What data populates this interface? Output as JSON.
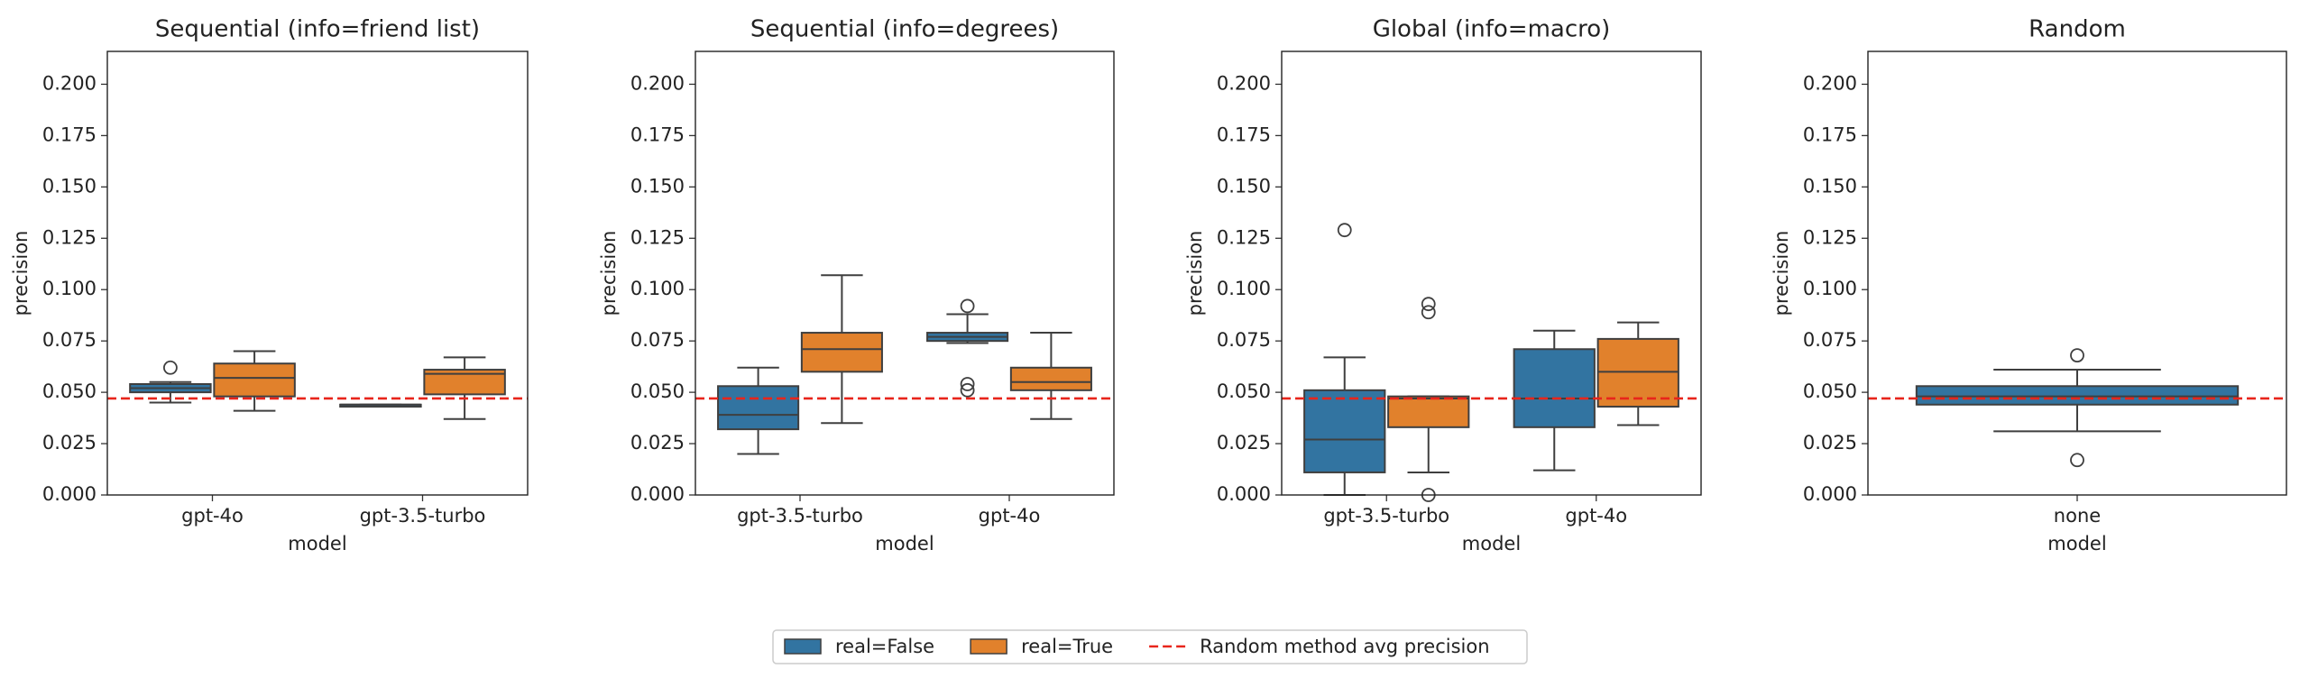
{
  "chart_data": [
    {
      "type": "box",
      "title": "Sequential (info=friend list)",
      "xlabel": "model",
      "ylabel": "precision",
      "categories": [
        "gpt-4o",
        "gpt-3.5-turbo"
      ],
      "ylim": [
        0,
        0.216
      ],
      "yticks": [
        {
          "value": 0,
          "label": "0.000"
        },
        {
          "value": 0.025,
          "label": "0.025"
        },
        {
          "value": 0.05,
          "label": "0.050"
        },
        {
          "value": 0.075,
          "label": "0.075"
        },
        {
          "value": 0.1,
          "label": "0.100"
        },
        {
          "value": 0.125,
          "label": "0.125"
        },
        {
          "value": 0.15,
          "label": "0.150"
        },
        {
          "value": 0.175,
          "label": "0.175"
        },
        {
          "value": 0.2,
          "label": "0.200"
        }
      ],
      "series": [
        {
          "color": "#3274a1",
          "boxes": [
            {
              "whislo": 0.045,
              "q1": 0.05,
              "median": 0.052,
              "q3": 0.054,
              "whishi": 0.055,
              "fliers": [
                0.062
              ]
            },
            {
              "whislo": 0.043,
              "q1": 0.043,
              "median": 0.044,
              "q3": 0.044,
              "whishi": 0.044,
              "fliers": []
            }
          ]
        },
        {
          "color": "#e1812c",
          "boxes": [
            {
              "whislo": 0.041,
              "q1": 0.048,
              "median": 0.057,
              "q3": 0.064,
              "whishi": 0.07,
              "fliers": []
            },
            {
              "whislo": 0.037,
              "q1": 0.049,
              "median": 0.059,
              "q3": 0.061,
              "whishi": 0.067,
              "fliers": []
            }
          ]
        }
      ]
    },
    {
      "type": "box",
      "title": "Sequential (info=degrees)",
      "xlabel": "model",
      "ylabel": "precision",
      "categories": [
        "gpt-3.5-turbo",
        "gpt-4o"
      ],
      "ylim": [
        0,
        0.216
      ],
      "yticks": [
        {
          "value": 0,
          "label": "0.000"
        },
        {
          "value": 0.025,
          "label": "0.025"
        },
        {
          "value": 0.05,
          "label": "0.050"
        },
        {
          "value": 0.075,
          "label": "0.075"
        },
        {
          "value": 0.1,
          "label": "0.100"
        },
        {
          "value": 0.125,
          "label": "0.125"
        },
        {
          "value": 0.15,
          "label": "0.150"
        },
        {
          "value": 0.175,
          "label": "0.175"
        },
        {
          "value": 0.2,
          "label": "0.200"
        }
      ],
      "series": [
        {
          "color": "#3274a1",
          "boxes": [
            {
              "whislo": 0.02,
              "q1": 0.032,
              "median": 0.039,
              "q3": 0.053,
              "whishi": 0.062,
              "fliers": []
            },
            {
              "whislo": 0.074,
              "q1": 0.075,
              "median": 0.077,
              "q3": 0.079,
              "whishi": 0.088,
              "fliers": [
                0.092,
                0.054,
                0.051
              ]
            }
          ]
        },
        {
          "color": "#e1812c",
          "boxes": [
            {
              "whislo": 0.035,
              "q1": 0.06,
              "median": 0.071,
              "q3": 0.079,
              "whishi": 0.107,
              "fliers": []
            },
            {
              "whislo": 0.037,
              "q1": 0.051,
              "median": 0.055,
              "q3": 0.062,
              "whishi": 0.079,
              "fliers": []
            }
          ]
        }
      ]
    },
    {
      "type": "box",
      "title": "Global (info=macro)",
      "xlabel": "model",
      "ylabel": "precision",
      "categories": [
        "gpt-3.5-turbo",
        "gpt-4o"
      ],
      "ylim": [
        0,
        0.216
      ],
      "yticks": [
        {
          "value": 0,
          "label": "0.000"
        },
        {
          "value": 0.025,
          "label": "0.025"
        },
        {
          "value": 0.05,
          "label": "0.050"
        },
        {
          "value": 0.075,
          "label": "0.075"
        },
        {
          "value": 0.1,
          "label": "0.100"
        },
        {
          "value": 0.125,
          "label": "0.125"
        },
        {
          "value": 0.15,
          "label": "0.150"
        },
        {
          "value": 0.175,
          "label": "0.175"
        },
        {
          "value": 0.2,
          "label": "0.200"
        }
      ],
      "series": [
        {
          "color": "#3274a1",
          "boxes": [
            {
              "whislo": 0,
              "q1": 0.011,
              "median": 0.027,
              "q3": 0.051,
              "whishi": 0.067,
              "fliers": [
                0.129
              ]
            },
            {
              "whislo": 0.012,
              "q1": 0.033,
              "median": 0.047,
              "q3": 0.071,
              "whishi": 0.08,
              "fliers": []
            }
          ]
        },
        {
          "color": "#e1812c",
          "boxes": [
            {
              "whislo": 0.011,
              "q1": 0.033,
              "median": 0.047,
              "q3": 0.048,
              "whishi": 0.048,
              "fliers": [
                0.093,
                0.089,
                0
              ]
            },
            {
              "whislo": 0.034,
              "q1": 0.043,
              "median": 0.06,
              "q3": 0.076,
              "whishi": 0.084,
              "fliers": []
            }
          ]
        }
      ]
    },
    {
      "type": "box",
      "title": "Random",
      "xlabel": "model",
      "ylabel": "precision",
      "categories": [
        "none"
      ],
      "ylim": [
        0,
        0.216
      ],
      "yticks": [
        {
          "value": 0,
          "label": "0.000"
        },
        {
          "value": 0.025,
          "label": "0.025"
        },
        {
          "value": 0.05,
          "label": "0.050"
        },
        {
          "value": 0.075,
          "label": "0.075"
        },
        {
          "value": 0.1,
          "label": "0.100"
        },
        {
          "value": 0.125,
          "label": "0.125"
        },
        {
          "value": 0.15,
          "label": "0.150"
        },
        {
          "value": 0.175,
          "label": "0.175"
        },
        {
          "value": 0.2,
          "label": "0.200"
        }
      ],
      "series": [
        {
          "color": "#3274a1",
          "boxes": [
            {
              "whislo": 0.031,
              "q1": 0.044,
              "median": 0.048,
              "q3": 0.053,
              "whishi": 0.061,
              "fliers": [
                0.068,
                0.017
              ]
            }
          ]
        }
      ]
    }
  ],
  "reference_line": {
    "value": 0.047,
    "color": "#e8251b",
    "label": "Random method avg precision"
  },
  "legend": [
    {
      "label": "real=False",
      "color": "#3274a1"
    },
    {
      "label": "real=True",
      "color": "#e1812c"
    }
  ]
}
